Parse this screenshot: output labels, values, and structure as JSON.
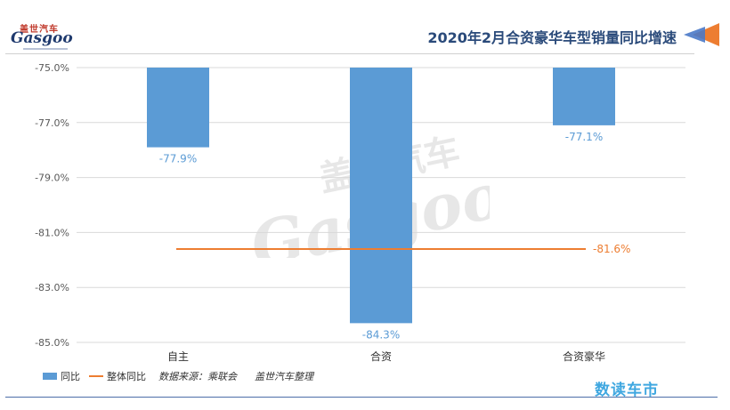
{
  "header": {
    "logo_top": "盖世汽车",
    "logo_main": "Gasgoo",
    "title": "2020年2月合资豪华车型销量同比增速"
  },
  "colors": {
    "bar": "#5b9bd5",
    "line": "#ed7d31",
    "grid": "#d9d9d9",
    "axis_text": "#595959"
  },
  "chart_data": {
    "type": "bar",
    "categories": [
      "自主",
      "合资",
      "合资豪华"
    ],
    "series": [
      {
        "name": "同比",
        "values": [
          -77.9,
          -84.3,
          -77.1
        ],
        "labels": [
          "-77.9%",
          "-84.3%",
          "-77.1%"
        ]
      },
      {
        "name": "整体同比",
        "type": "line",
        "value": -81.6,
        "label": "-81.6%"
      }
    ],
    "y_ticks": [
      -75,
      -77,
      -79,
      -81,
      -83,
      -85
    ],
    "y_tick_labels": [
      "-75.0%",
      "-77.0%",
      "-79.0%",
      "-81.0%",
      "-83.0%",
      "-85.0%"
    ],
    "ylim": [
      -85,
      -75
    ],
    "grid": true,
    "legend_position": "bottom-left"
  },
  "legend": {
    "bar_label": "同比",
    "line_label": "整体同比",
    "source": "数据来源：乘联会",
    "editor": "盖世汽车整理"
  },
  "footer": {
    "brand": "数读车市"
  },
  "watermark": {
    "text_top": "盖世汽车",
    "text_main": "Gasgoo"
  }
}
